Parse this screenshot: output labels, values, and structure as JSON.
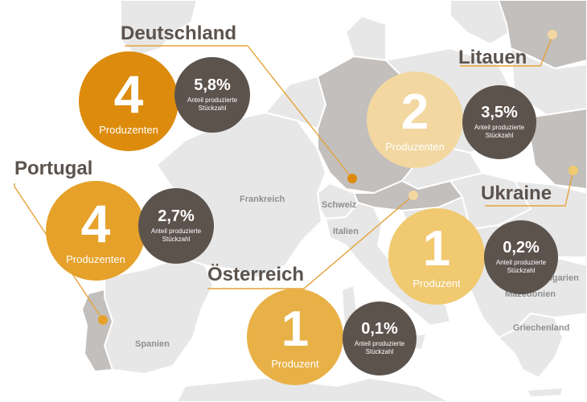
{
  "colors": {
    "dark": "#5d534d",
    "title": "#5b534e",
    "deutschland": "#dd8b0c",
    "portugal": "#e5a129",
    "oesterreich": "#e8b147",
    "ukraine": "#f0c970",
    "litauen": "#f2d7a0",
    "map_land": "#e7e7e7",
    "map_highlight": "#c2bfbc",
    "leader": "#e5a33a"
  },
  "map_labels": {
    "frankreich": "Frankreich",
    "schweiz": "Schweiz",
    "italien": "Italien",
    "spanien": "Spanien",
    "bulgarien": "ulgarien",
    "mazedonien": "Mazedonien",
    "griechenland": "Griechenland"
  },
  "countries": {
    "deutschland": {
      "name": "Deutschland",
      "count": "4",
      "unit": "Produzenten",
      "percent": "5,8%",
      "percent_label_1": "Anteil produzierte",
      "percent_label_2": "Stückzahl"
    },
    "portugal": {
      "name": "Portugal",
      "count": "4",
      "unit": "Produzenten",
      "percent": "2,7%",
      "percent_label_1": "Anteil produzierte",
      "percent_label_2": "Stückzahl"
    },
    "litauen": {
      "name": "Litauen",
      "count": "2",
      "unit": "Produzenten",
      "percent": "3,5%",
      "percent_label_1": "Anteil produzierte",
      "percent_label_2": "Stückzahl"
    },
    "ukraine": {
      "name": "Ukraine",
      "count": "1",
      "unit": "Produzent",
      "percent": "0,2%",
      "percent_label_1": "Anteil produzierte",
      "percent_label_2": "Stückzahl"
    },
    "oesterreich": {
      "name": "Österreich",
      "count": "1",
      "unit": "Produzent",
      "percent": "0,1%",
      "percent_label_1": "Anteil produzierte",
      "percent_label_2": "Stückzahl"
    }
  }
}
